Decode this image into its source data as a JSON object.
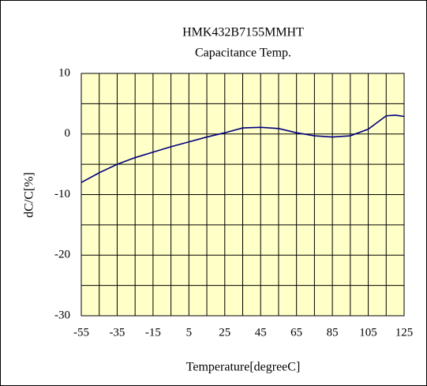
{
  "chart_data": {
    "type": "line",
    "title": "HMK432B7155MMHT",
    "subtitle": "Capacitance Temp.",
    "x_label": "Temperature[degreeC]",
    "y_label": "dC/C[%]",
    "x": [
      -55,
      -45,
      -35,
      -25,
      -15,
      -5,
      5,
      15,
      25,
      35,
      45,
      55,
      65,
      75,
      85,
      95,
      105,
      115,
      120,
      125
    ],
    "series": [
      {
        "name": "dC/C",
        "color": "#000080",
        "values": [
          -8.0,
          -6.4,
          -5.0,
          -3.9,
          -3.0,
          -2.1,
          -1.3,
          -0.5,
          0.2,
          1.0,
          1.1,
          0.9,
          0.2,
          -0.3,
          -0.5,
          -0.3,
          0.8,
          3.0,
          3.1,
          2.9
        ]
      }
    ],
    "xlim": [
      -55,
      125
    ],
    "ylim": [
      -30,
      10
    ],
    "xticks": [
      -55,
      -35,
      -15,
      5,
      25,
      45,
      65,
      85,
      105,
      125
    ],
    "yticks": [
      -30,
      -20,
      -10,
      0,
      10
    ],
    "xgrid": [
      -45,
      -25,
      -5,
      15,
      35,
      55,
      75,
      95,
      115
    ],
    "ygrid": [
      -25,
      -15,
      -5,
      5
    ],
    "grid": true,
    "plot_background": "#ffffc8"
  }
}
